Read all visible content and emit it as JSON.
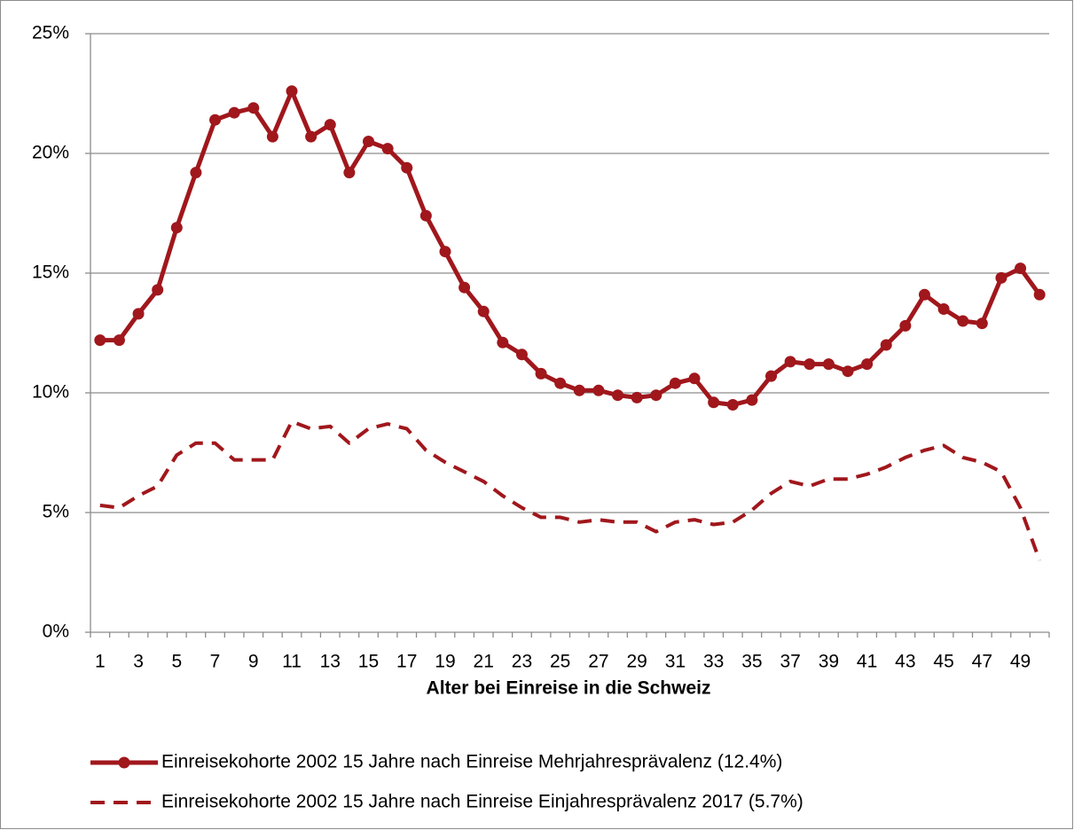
{
  "chart_data": {
    "type": "line",
    "xlabel": "Alter bei Einreise in die Schweiz",
    "categories": [
      "1",
      null,
      "3",
      null,
      "5",
      null,
      "7",
      null,
      "9",
      null,
      "11",
      null,
      "13",
      null,
      "15",
      null,
      "17",
      null,
      "19",
      null,
      "21",
      null,
      "23",
      null,
      "25",
      null,
      "27",
      null,
      "29",
      null,
      "31",
      null,
      "33",
      null,
      "35",
      null,
      "37",
      null,
      "39",
      null,
      "41",
      null,
      "43",
      null,
      "45",
      null,
      "47",
      null,
      "49",
      null
    ],
    "series": [
      {
        "name": "Einreisekohorte 2002 15 Jahre nach Einreise Mehrjahresprävalenz (12.4%)",
        "color": "#a0171c",
        "dashed": false,
        "markers": true,
        "values": [
          12.2,
          12.2,
          13.3,
          14.3,
          16.9,
          19.2,
          21.4,
          21.7,
          21.9,
          20.7,
          22.6,
          20.7,
          21.2,
          19.2,
          20.5,
          20.2,
          19.4,
          17.4,
          15.9,
          14.4,
          13.4,
          12.1,
          11.6,
          10.8,
          10.4,
          10.1,
          10.1,
          9.9,
          9.8,
          9.9,
          10.4,
          10.6,
          9.6,
          9.5,
          9.7,
          10.7,
          11.3,
          11.2,
          11.2,
          10.9,
          11.2,
          12.0,
          12.8,
          14.1,
          13.5,
          13.0,
          12.9,
          14.8,
          15.2,
          14.1
        ]
      },
      {
        "name": "Einreisekohorte 2002 15 Jahre nach Einreise Einjahresprävalenz 2017 (5.7%)",
        "color": "#a0171c",
        "dashed": true,
        "markers": false,
        "values": [
          5.3,
          5.2,
          5.7,
          6.1,
          7.4,
          7.9,
          7.9,
          7.2,
          7.2,
          7.2,
          8.8,
          8.5,
          8.6,
          7.9,
          8.5,
          8.7,
          8.5,
          7.6,
          7.1,
          6.7,
          6.3,
          5.7,
          5.2,
          4.8,
          4.8,
          4.6,
          4.7,
          4.6,
          4.6,
          4.2,
          4.6,
          4.7,
          4.5,
          4.6,
          5.1,
          5.8,
          6.3,
          6.1,
          6.4,
          6.4,
          6.6,
          6.9,
          7.3,
          7.6,
          7.8,
          7.3,
          7.1,
          6.7,
          5.2,
          3.0
        ]
      }
    ],
    "ylim": [
      0,
      25
    ],
    "yticks": [
      {
        "value": 0,
        "label": "0%"
      },
      {
        "value": 5,
        "label": "5%"
      },
      {
        "value": 10,
        "label": "10%"
      },
      {
        "value": 15,
        "label": "15%"
      },
      {
        "value": 20,
        "label": "20%"
      },
      {
        "value": 25,
        "label": "25%"
      }
    ],
    "grid": true,
    "legend": "bottom"
  }
}
